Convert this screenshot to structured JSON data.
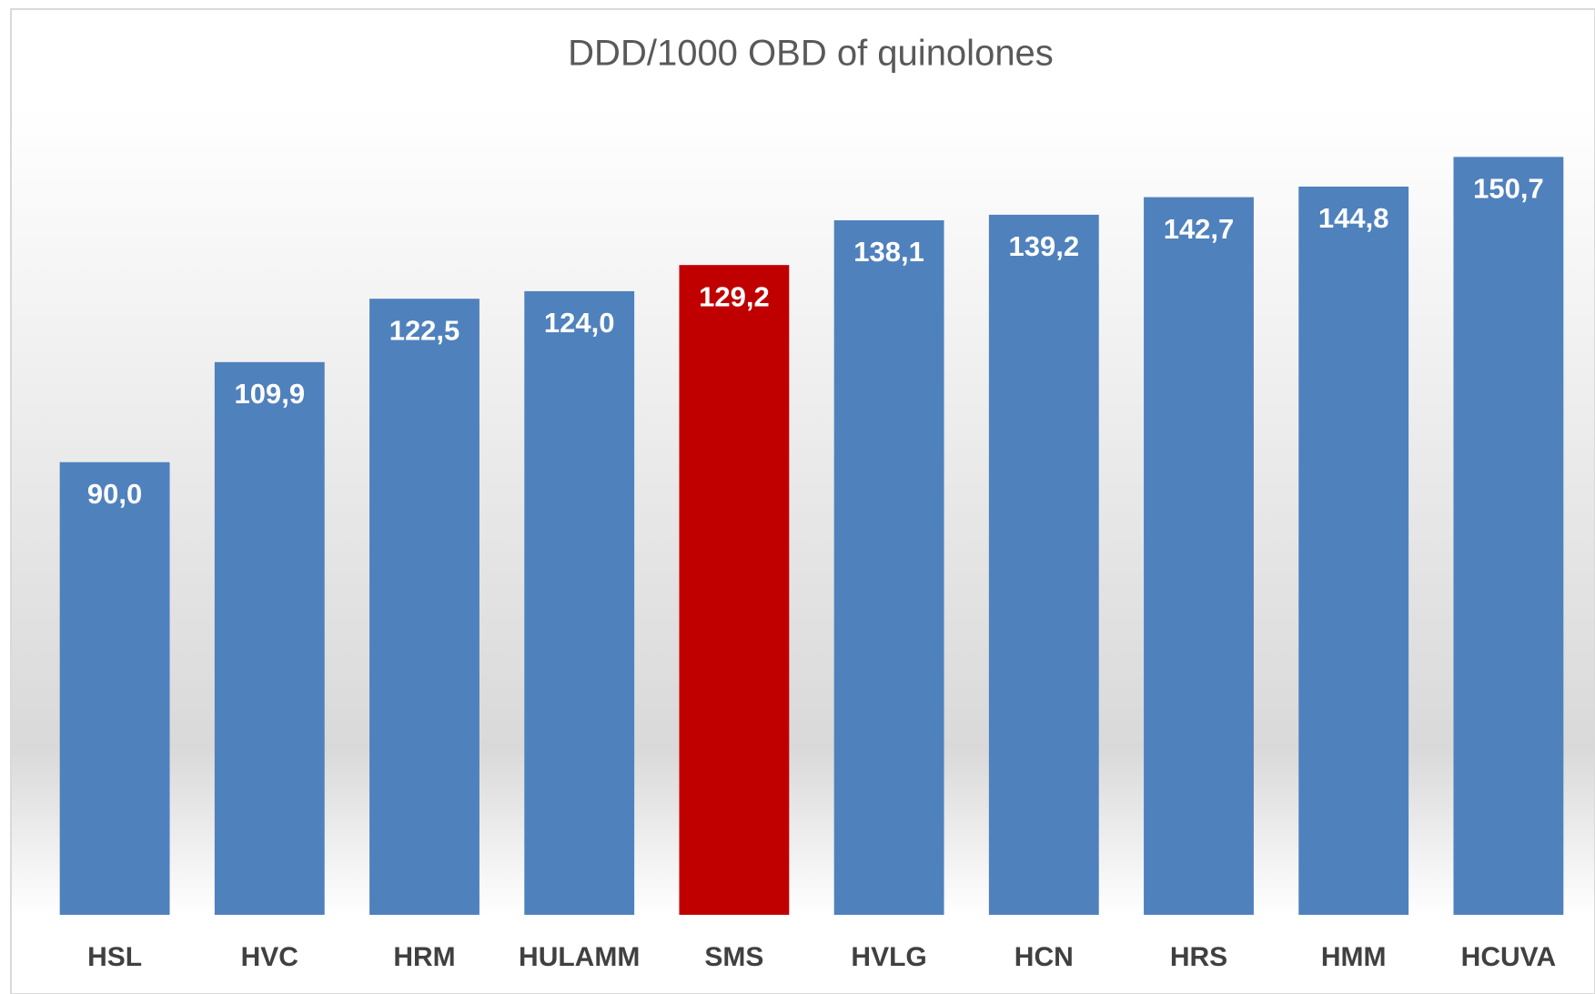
{
  "chart_data": {
    "type": "bar",
    "title": "DDD/1000 OBD of quinolones",
    "categories": [
      "HSL",
      "HVC",
      "HRM",
      "HULAMM",
      "SMS",
      "HVLG",
      "HCN",
      "HRS",
      "HMM",
      "HCUVA"
    ],
    "values": [
      90.0,
      109.9,
      122.5,
      124.0,
      129.2,
      138.1,
      139.2,
      142.7,
      144.8,
      150.7
    ],
    "value_labels": [
      "90,0",
      "109,9",
      "122,5",
      "124,0",
      "129,2",
      "138,1",
      "139,2",
      "142,7",
      "144,8",
      "150,7"
    ],
    "colors": [
      "#4f81bd",
      "#4f81bd",
      "#4f81bd",
      "#4f81bd",
      "#c00000",
      "#4f81bd",
      "#4f81bd",
      "#4f81bd",
      "#4f81bd",
      "#4f81bd"
    ],
    "ylim": [
      0,
      160
    ],
    "grid": false
  }
}
